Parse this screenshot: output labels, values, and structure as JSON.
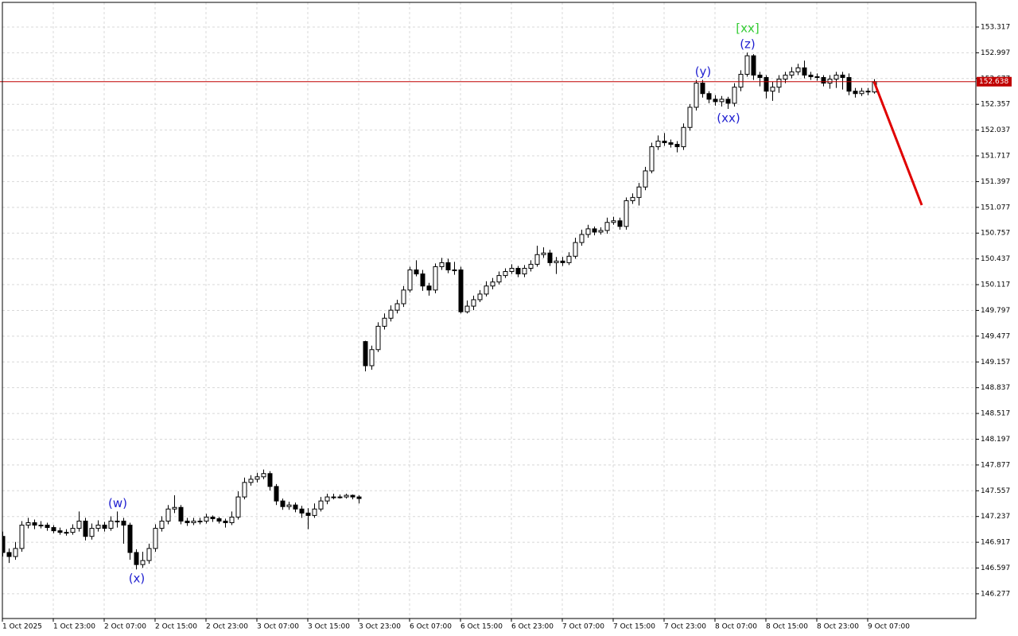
{
  "chart_data": {
    "type": "candlestick",
    "xticks": [
      {
        "value": 0,
        "label": "1 Oct 2025"
      },
      {
        "value": 8,
        "label": "1 Oct 23:00"
      },
      {
        "value": 16,
        "label": "2 Oct 07:00"
      },
      {
        "value": 24,
        "label": "2 Oct 15:00"
      },
      {
        "value": 32,
        "label": "2 Oct 23:00"
      },
      {
        "value": 40,
        "label": "3 Oct 07:00"
      },
      {
        "value": 48,
        "label": "3 Oct 15:00"
      },
      {
        "value": 56,
        "label": "3 Oct 23:00"
      },
      {
        "value": 64,
        "label": "6 Oct 07:00"
      },
      {
        "value": 72,
        "label": "6 Oct 15:00"
      },
      {
        "value": 80,
        "label": "6 Oct 23:00"
      },
      {
        "value": 88,
        "label": "7 Oct 07:00"
      },
      {
        "value": 96,
        "label": "7 Oct 15:00"
      },
      {
        "value": 104,
        "label": "7 Oct 23:00"
      },
      {
        "value": 112,
        "label": "8 Oct 07:00"
      },
      {
        "value": 120,
        "label": "8 Oct 15:00"
      },
      {
        "value": 128,
        "label": "8 Oct 23:00"
      },
      {
        "value": 136,
        "label": "9 Oct 07:00"
      }
    ],
    "xlim": [
      0,
      153
    ],
    "ylim": [
      145.97,
      153.623
    ],
    "yticks": [
      146.277,
      146.597,
      146.917,
      147.237,
      147.557,
      147.877,
      148.197,
      148.517,
      148.837,
      149.157,
      149.477,
      149.797,
      150.117,
      150.437,
      150.757,
      151.077,
      151.397,
      151.717,
      152.037,
      152.357,
      152.677,
      152.997,
      153.317
    ],
    "grid": true,
    "bull_color": "#ffffff",
    "bear_color": "#000000",
    "ohlc": [
      [
        146.99,
        147.05,
        146.74,
        146.79
      ],
      [
        146.79,
        146.84,
        146.66,
        146.74
      ],
      [
        146.74,
        146.92,
        146.7,
        146.84
      ],
      [
        146.84,
        147.18,
        146.8,
        147.13
      ],
      [
        147.13,
        147.22,
        147.09,
        147.16
      ],
      [
        147.16,
        147.2,
        147.08,
        147.13
      ],
      [
        147.13,
        147.18,
        147.09,
        147.13
      ],
      [
        147.13,
        147.16,
        147.06,
        147.1
      ],
      [
        147.1,
        147.13,
        147.03,
        147.06
      ],
      [
        147.06,
        147.1,
        147.01,
        147.04
      ],
      [
        147.04,
        147.08,
        147.0,
        147.04
      ],
      [
        147.04,
        147.14,
        147.01,
        147.09
      ],
      [
        147.09,
        147.3,
        147.05,
        147.18
      ],
      [
        147.18,
        147.22,
        146.94,
        146.99
      ],
      [
        146.99,
        147.15,
        146.95,
        147.09
      ],
      [
        147.09,
        147.19,
        147.05,
        147.13
      ],
      [
        147.13,
        147.17,
        147.05,
        147.09
      ],
      [
        147.09,
        147.24,
        147.06,
        147.18
      ],
      [
        147.18,
        147.3,
        147.1,
        147.18
      ],
      [
        147.18,
        147.22,
        146.9,
        147.13
      ],
      [
        147.13,
        147.16,
        146.7,
        146.79
      ],
      [
        146.79,
        146.83,
        146.58,
        146.64
      ],
      [
        146.64,
        146.8,
        146.6,
        146.69
      ],
      [
        146.69,
        146.9,
        146.65,
        146.84
      ],
      [
        146.84,
        147.14,
        146.8,
        147.09
      ],
      [
        147.09,
        147.24,
        147.05,
        147.18
      ],
      [
        147.18,
        147.38,
        147.14,
        147.33
      ],
      [
        147.33,
        147.5,
        147.28,
        147.35
      ],
      [
        147.35,
        147.38,
        147.14,
        147.18
      ],
      [
        147.18,
        147.22,
        147.12,
        147.16
      ],
      [
        147.16,
        147.22,
        147.13,
        147.18
      ],
      [
        147.18,
        147.22,
        147.14,
        147.18
      ],
      [
        147.18,
        147.27,
        147.15,
        147.23
      ],
      [
        147.23,
        147.25,
        147.17,
        147.21
      ],
      [
        147.21,
        147.23,
        147.15,
        147.18
      ],
      [
        147.18,
        147.21,
        147.1,
        147.16
      ],
      [
        147.16,
        147.3,
        147.13,
        147.23
      ],
      [
        147.23,
        147.55,
        147.2,
        147.48
      ],
      [
        147.48,
        147.72,
        147.45,
        147.66
      ],
      [
        147.66,
        147.75,
        147.62,
        147.7
      ],
      [
        147.7,
        147.78,
        147.66,
        147.73
      ],
      [
        147.73,
        147.82,
        147.7,
        147.77
      ],
      [
        147.77,
        147.8,
        147.56,
        147.61
      ],
      [
        147.61,
        147.64,
        147.38,
        147.43
      ],
      [
        147.43,
        147.46,
        147.32,
        147.36
      ],
      [
        147.36,
        147.42,
        147.32,
        147.38
      ],
      [
        147.38,
        147.41,
        147.29,
        147.33
      ],
      [
        147.33,
        147.37,
        147.22,
        147.28
      ],
      [
        147.28,
        147.34,
        147.08,
        147.25
      ],
      [
        147.25,
        147.4,
        147.22,
        147.33
      ],
      [
        147.33,
        147.48,
        147.3,
        147.43
      ],
      [
        147.43,
        147.52,
        147.39,
        147.48
      ],
      [
        147.48,
        147.52,
        147.45,
        147.48
      ],
      [
        147.48,
        147.51,
        147.46,
        147.48
      ],
      [
        147.48,
        147.52,
        147.46,
        147.5
      ],
      [
        147.5,
        147.51,
        147.45,
        147.48
      ],
      [
        147.48,
        147.5,
        147.4,
        147.46
      ],
      [
        149.41,
        149.42,
        149.04,
        149.11
      ],
      [
        149.11,
        149.36,
        149.06,
        149.31
      ],
      [
        149.31,
        149.65,
        149.28,
        149.6
      ],
      [
        149.6,
        149.76,
        149.56,
        149.7
      ],
      [
        149.7,
        149.86,
        149.66,
        149.8
      ],
      [
        149.8,
        149.93,
        149.76,
        149.88
      ],
      [
        149.88,
        150.1,
        149.84,
        150.05
      ],
      [
        150.05,
        150.34,
        150.02,
        150.3
      ],
      [
        150.3,
        150.42,
        150.22,
        150.25
      ],
      [
        150.25,
        150.3,
        150.04,
        150.1
      ],
      [
        150.1,
        150.14,
        149.98,
        150.05
      ],
      [
        150.05,
        150.38,
        150.01,
        150.34
      ],
      [
        150.34,
        150.45,
        150.3,
        150.39
      ],
      [
        150.39,
        150.44,
        150.26,
        150.3
      ],
      [
        150.3,
        150.4,
        150.24,
        150.3
      ],
      [
        150.3,
        150.34,
        149.76,
        149.78
      ],
      [
        149.78,
        149.92,
        149.76,
        149.85
      ],
      [
        149.85,
        149.98,
        149.8,
        149.93
      ],
      [
        149.93,
        150.05,
        149.9,
        150.0
      ],
      [
        150.0,
        150.16,
        149.97,
        150.1
      ],
      [
        150.1,
        150.2,
        150.06,
        150.15
      ],
      [
        150.15,
        150.28,
        150.12,
        150.23
      ],
      [
        150.23,
        150.32,
        150.2,
        150.28
      ],
      [
        150.28,
        150.37,
        150.25,
        150.32
      ],
      [
        150.32,
        150.35,
        150.21,
        150.25
      ],
      [
        150.25,
        150.36,
        150.21,
        150.32
      ],
      [
        150.32,
        150.42,
        150.28,
        150.37
      ],
      [
        150.37,
        150.6,
        150.34,
        150.49
      ],
      [
        150.49,
        150.58,
        150.45,
        150.51
      ],
      [
        150.51,
        150.55,
        150.35,
        150.39
      ],
      [
        150.39,
        150.46,
        150.25,
        150.41
      ],
      [
        150.41,
        150.46,
        150.35,
        150.39
      ],
      [
        150.39,
        150.52,
        150.36,
        150.47
      ],
      [
        150.47,
        150.7,
        150.44,
        150.64
      ],
      [
        150.64,
        150.8,
        150.6,
        150.74
      ],
      [
        150.74,
        150.86,
        150.7,
        150.81
      ],
      [
        150.81,
        150.84,
        150.73,
        150.77
      ],
      [
        150.77,
        150.83,
        150.74,
        150.79
      ],
      [
        150.79,
        150.95,
        150.75,
        150.89
      ],
      [
        150.89,
        150.96,
        150.86,
        150.91
      ],
      [
        150.91,
        150.95,
        150.8,
        150.84
      ],
      [
        150.84,
        151.2,
        150.8,
        151.16
      ],
      [
        151.16,
        151.25,
        151.12,
        151.2
      ],
      [
        151.2,
        151.38,
        151.1,
        151.33
      ],
      [
        151.33,
        151.58,
        151.29,
        151.53
      ],
      [
        151.53,
        151.88,
        151.5,
        151.83
      ],
      [
        151.83,
        151.97,
        151.79,
        151.9
      ],
      [
        151.9,
        152.0,
        151.84,
        151.88
      ],
      [
        151.88,
        151.92,
        151.82,
        151.86
      ],
      [
        151.86,
        151.9,
        151.76,
        151.83
      ],
      [
        151.83,
        152.12,
        151.79,
        152.07
      ],
      [
        152.07,
        152.36,
        152.03,
        152.32
      ],
      [
        152.32,
        152.66,
        152.28,
        152.62
      ],
      [
        152.62,
        152.66,
        152.44,
        152.49
      ],
      [
        152.49,
        152.52,
        152.37,
        152.42
      ],
      [
        152.42,
        152.47,
        152.34,
        152.39
      ],
      [
        152.39,
        152.46,
        152.33,
        152.42
      ],
      [
        152.42,
        152.45,
        152.3,
        152.37
      ],
      [
        152.37,
        152.62,
        152.33,
        152.57
      ],
      [
        152.57,
        152.78,
        152.52,
        152.73
      ],
      [
        152.73,
        153.0,
        152.7,
        152.96
      ],
      [
        152.96,
        152.98,
        152.66,
        152.72
      ],
      [
        152.72,
        152.76,
        152.58,
        152.69
      ],
      [
        152.69,
        152.72,
        152.43,
        152.52
      ],
      [
        152.52,
        152.64,
        152.4,
        152.57
      ],
      [
        152.57,
        152.72,
        152.5,
        152.67
      ],
      [
        152.67,
        152.76,
        152.62,
        152.72
      ],
      [
        152.72,
        152.82,
        152.68,
        152.76
      ],
      [
        152.76,
        152.86,
        152.72,
        152.81
      ],
      [
        152.81,
        152.9,
        152.68,
        152.72
      ],
      [
        152.72,
        152.76,
        152.66,
        152.7
      ],
      [
        152.7,
        152.74,
        152.65,
        152.69
      ],
      [
        152.69,
        152.72,
        152.58,
        152.62
      ],
      [
        152.62,
        152.72,
        152.55,
        152.67
      ],
      [
        152.67,
        152.76,
        152.56,
        152.72
      ],
      [
        152.72,
        152.76,
        152.54,
        152.69
      ],
      [
        152.69,
        152.74,
        152.47,
        152.52
      ],
      [
        152.52,
        152.56,
        152.44,
        152.49
      ],
      [
        152.49,
        152.56,
        152.46,
        152.52
      ],
      [
        152.52,
        152.56,
        152.47,
        152.51
      ],
      [
        152.51,
        152.67,
        152.49,
        152.638
      ]
    ],
    "current_price": 152.638,
    "current_price_color": "#c00000",
    "forecast": {
      "x": [
        137,
        144.5
      ],
      "values": [
        152.638,
        151.105
      ],
      "color": "#e00000"
    },
    "annotations": [
      {
        "text": "(w)",
        "candle": 18,
        "side": "above",
        "color": "#1f1fd0"
      },
      {
        "text": "(x)",
        "candle": 21,
        "side": "below",
        "color": "#1f1fd0"
      },
      {
        "text": "(y)",
        "candle": 110,
        "side": "above",
        "color": "#1f1fd0"
      },
      {
        "text": "(xx)",
        "candle": 114,
        "side": "below",
        "color": "#1f1fd0"
      },
      {
        "text": "(z)",
        "candle": 117,
        "side": "above",
        "color": "#1f1fd0"
      },
      {
        "text": "[xx]",
        "candle": 117,
        "side": "above",
        "color": "#33cc33"
      }
    ]
  }
}
